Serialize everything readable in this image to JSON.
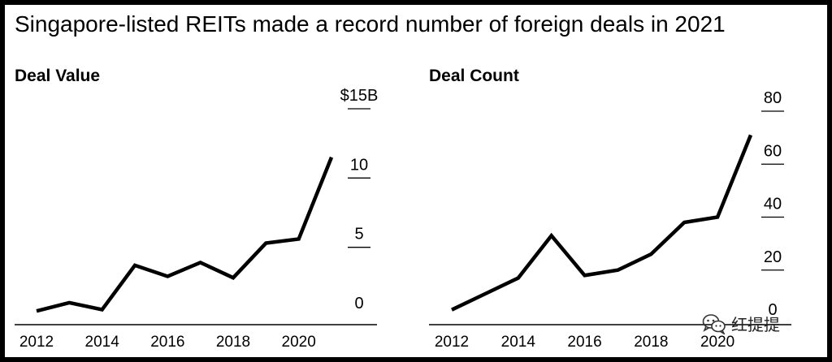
{
  "page": {
    "title": "Singapore-listed REITs made a record number of foreign deals in 2021"
  },
  "watermark": {
    "icon": "wechat-icon",
    "text": "红提提"
  },
  "chart_data": [
    {
      "type": "line",
      "title": "Deal Value",
      "x": [
        2012,
        2013,
        2014,
        2015,
        2016,
        2017,
        2018,
        2019,
        2020,
        2021
      ],
      "series": [
        {
          "values": [
            0.4,
            1.0,
            0.5,
            3.7,
            2.9,
            3.9,
            2.8,
            5.3,
            5.6,
            11.5
          ]
        }
      ],
      "x_tick_labels": [
        "2012",
        "2014",
        "2016",
        "2018",
        "2020"
      ],
      "y_tick_labels": [
        "0",
        "5",
        "10",
        "$15B"
      ],
      "ylim": [
        0,
        15
      ],
      "y_axis_side": "right",
      "grid": false
    },
    {
      "type": "line",
      "title": "Deal Count",
      "x": [
        2012,
        2013,
        2014,
        2015,
        2016,
        2017,
        2018,
        2019,
        2020,
        2021
      ],
      "series": [
        {
          "values": [
            5,
            11,
            17,
            33,
            18,
            20,
            26,
            38,
            40,
            71
          ]
        }
      ],
      "x_tick_labels": [
        "2012",
        "2014",
        "2016",
        "2018",
        "2020"
      ],
      "y_tick_labels": [
        "0",
        "20",
        "40",
        "60",
        "80"
      ],
      "ylim": [
        0,
        80
      ],
      "y_axis_side": "right",
      "grid": false
    }
  ]
}
